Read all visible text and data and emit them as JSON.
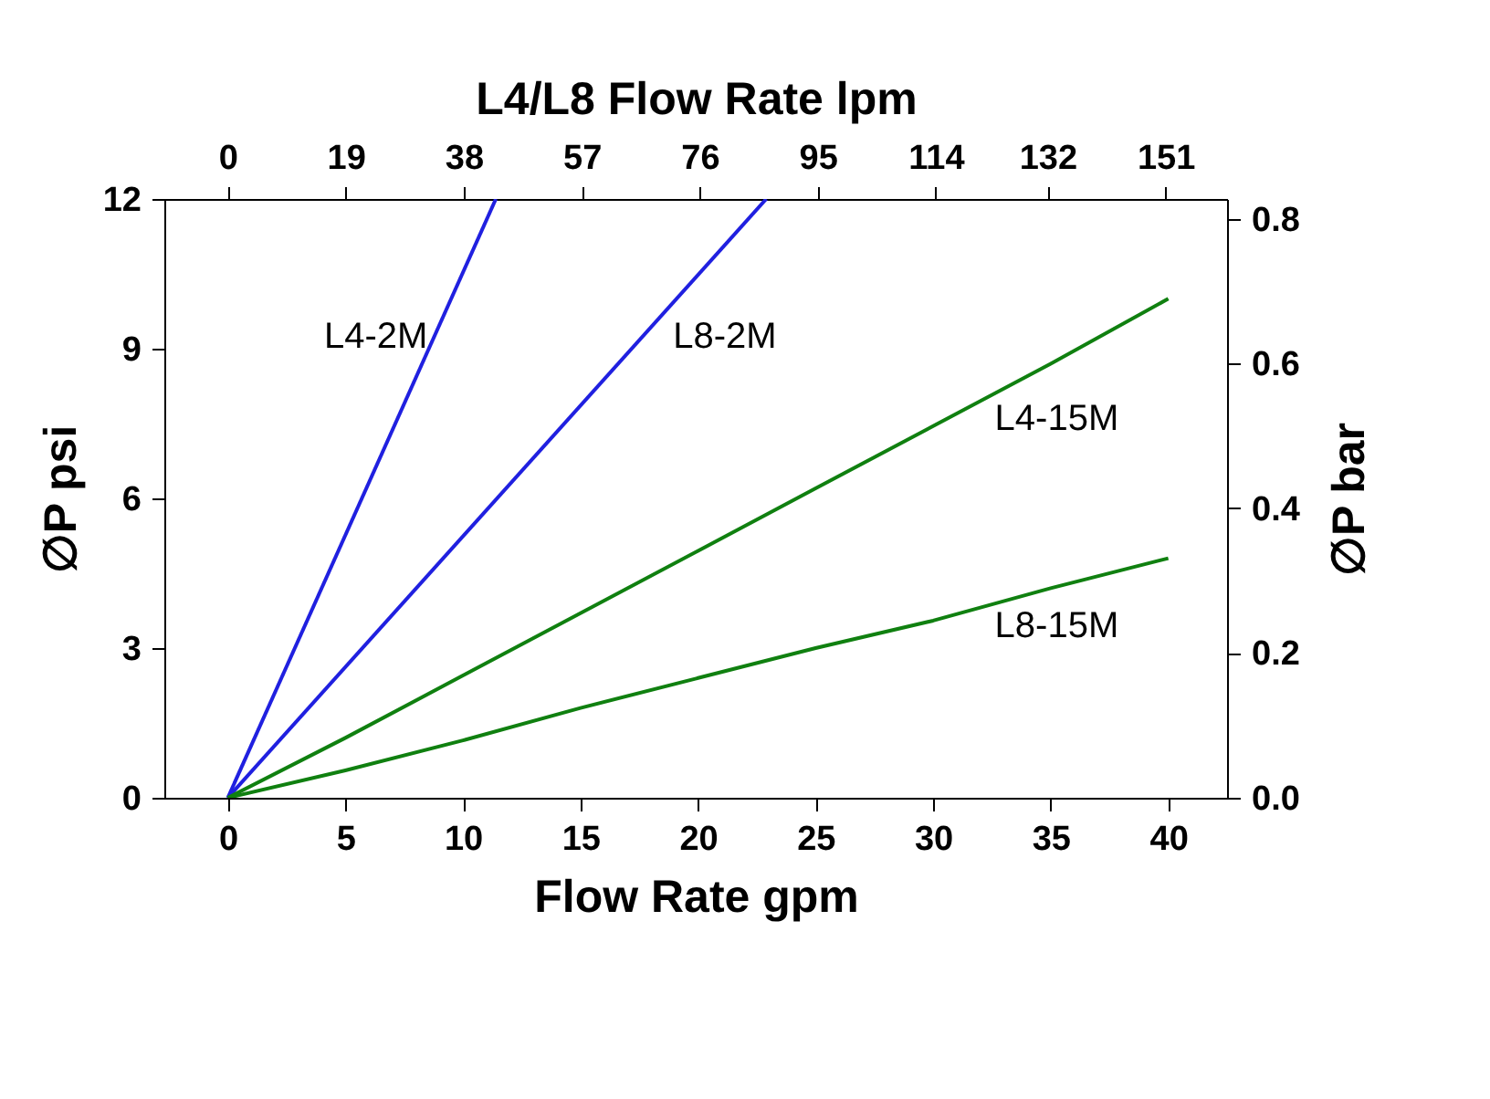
{
  "chart_data": {
    "type": "line",
    "xlabel": "Flow Rate gpm",
    "ylabel": "∅P psi",
    "y2label": "∅P bar",
    "x2label": "L4/L8  Flow Rate lpm",
    "xlim": [
      -2.7,
      42.5
    ],
    "xticks": [
      0,
      5,
      10,
      15,
      20,
      25,
      30,
      35,
      40
    ],
    "x2lim": [
      -10.2,
      160.9
    ],
    "x2ticks": [
      0,
      19,
      38,
      57,
      76,
      95,
      114,
      132,
      151
    ],
    "ylim": [
      0,
      12
    ],
    "yticks": [
      0,
      3,
      6,
      9,
      12
    ],
    "y2lim": [
      0,
      0.8274
    ],
    "y2ticks": [
      {
        "value": 0,
        "label": "0.0"
      },
      0.2,
      0.4,
      0.6,
      0.8
    ],
    "grid": false,
    "legend": false,
    "series": [
      {
        "name": "L4-2M",
        "color": "#2020e0",
        "x": [
          0,
          11.4
        ],
        "values": [
          0,
          12
        ]
      },
      {
        "name": "L8-2M",
        "color": "#2020e0",
        "x": [
          0,
          22.9
        ],
        "values": [
          0,
          12
        ]
      },
      {
        "name": "L4-15M",
        "color": "#108010",
        "x": [
          0,
          5,
          10,
          15,
          20,
          25,
          30,
          35,
          40
        ],
        "values": [
          0,
          1.2,
          2.45,
          3.7,
          4.95,
          6.2,
          7.45,
          8.7,
          10
        ]
      },
      {
        "name": "L8-15M",
        "color": "#108010",
        "x": [
          0,
          5,
          10,
          15,
          20,
          25,
          30,
          35,
          40
        ],
        "values": [
          0,
          0.55,
          1.15,
          1.8,
          2.4,
          3.0,
          3.55,
          4.2,
          4.8
        ]
      }
    ]
  }
}
